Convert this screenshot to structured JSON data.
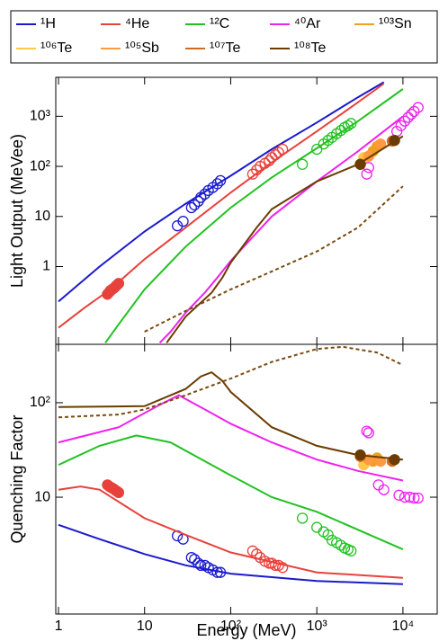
{
  "chart_data": [
    {
      "type": "line",
      "ylabel": "Light Output (MeVee)",
      "log_x": true,
      "log_y": true,
      "xlim": [
        0.93,
        25000
      ],
      "ylim": [
        0.028,
        6000
      ],
      "xticks": [
        1,
        10,
        100,
        1000,
        10000
      ],
      "yticks": [
        1,
        10,
        {
          "value": 100,
          "label": "10²"
        },
        {
          "value": 1000,
          "label": "10³"
        }
      ],
      "series": [
        {
          "name": "¹H",
          "color": "#1a1acd",
          "x": [
            1,
            3,
            10,
            30,
            100,
            300,
            1000,
            3000,
            6000
          ],
          "values": [
            0.2,
            1.0,
            5,
            18,
            65,
            220,
            750,
            2400,
            4800
          ],
          "points": [
            {
              "filled": false,
              "x": [
                24,
                28,
                35,
                38,
                42,
                45,
                50,
                55,
                62,
                70,
                76
              ],
              "values": [
                6.5,
                8,
                15,
                17,
                20,
                24,
                28,
                33,
                38,
                45,
                52
              ]
            }
          ]
        },
        {
          "name": "⁴He",
          "color": "#e8413b",
          "x": [
            1,
            2,
            4,
            10,
            30,
            100,
            300,
            1000,
            3000,
            6000
          ],
          "values": [
            0.06,
            0.15,
            0.35,
            1.4,
            6,
            30,
            120,
            500,
            1900,
            4500
          ],
          "points": [
            {
              "filled": true,
              "x": [
                3.7,
                3.9,
                4.0,
                4.2,
                4.4,
                4.6,
                4.8,
                5.0
              ],
              "values": [
                0.28,
                0.31,
                0.33,
                0.35,
                0.37,
                0.4,
                0.43,
                0.46
              ]
            },
            {
              "filled": false,
              "x": [
                180,
                200,
                220,
                250,
                280,
                300,
                330,
                360,
                400
              ],
              "values": [
                70,
                85,
                100,
                115,
                130,
                150,
                170,
                190,
                220
              ]
            }
          ]
        },
        {
          "name": "¹²C",
          "color": "#21c221",
          "x": [
            3.5,
            5,
            10,
            30,
            100,
            300,
            1000,
            3000,
            10000
          ],
          "values": [
            0.03,
            0.07,
            0.35,
            2.5,
            15,
            60,
            230,
            800,
            3500
          ],
          "points": [
            {
              "filled": false,
              "x": [
                680,
                1000,
                1200,
                1350,
                1500,
                1700,
                1900,
                2100,
                2300,
                2500
              ],
              "values": [
                110,
                220,
                280,
                330,
                380,
                450,
                520,
                600,
                650,
                720
              ]
            }
          ]
        },
        {
          "name": "⁴⁰Ar",
          "color": "#ee22ee",
          "x": [
            15,
            20,
            30,
            50,
            70,
            100,
            300,
            1000,
            3000,
            10000
          ],
          "values": [
            0.03,
            0.05,
            0.12,
            0.3,
            0.6,
            1.3,
            10,
            50,
            200,
            1000
          ],
          "points": [
            {
              "filled": false,
              "x": [
                3800,
                4000,
                8500,
                9500,
                10500,
                11500,
                12500,
                13500,
                15000
              ],
              "values": [
                70,
                95,
                500,
                650,
                800,
                950,
                1100,
                1250,
                1500
              ]
            }
          ]
        },
        {
          "name": "¹⁰³Sn",
          "color": "#f0a020",
          "points": [
            {
              "filled": true,
              "x": [
                4500,
                5000
              ],
              "values": [
                200,
                250
              ]
            }
          ]
        },
        {
          "name": "¹⁰⁶Te",
          "color": "#ffc848",
          "points": [
            {
              "filled": true,
              "x": [
                3500
              ],
              "values": [
                150
              ]
            }
          ]
        },
        {
          "name": "¹⁰⁵Sb",
          "color": "#ff9a40",
          "points": [
            {
              "filled": true,
              "x": [
                4000,
                5500
              ],
              "values": [
                160,
                280
              ]
            }
          ]
        },
        {
          "name": "¹⁰⁷Te",
          "color": "#d06a20",
          "points": [
            {
              "filled": true,
              "x": [
                3200,
                7500
              ],
              "values": [
                110,
                320
              ]
            }
          ]
        },
        {
          "name": "¹⁰⁸Te",
          "color": "#6b3c00",
          "x": [
            18,
            30,
            60,
            80,
            100,
            200,
            300,
            1000,
            3000,
            10000
          ],
          "values": [
            0.03,
            0.1,
            0.3,
            0.6,
            1.2,
            6,
            14,
            50,
            110,
            400
          ],
          "points": [
            {
              "filled": true,
              "x": [
                3200,
                8000
              ],
              "values": [
                110,
                330
              ]
            }
          ]
        },
        {
          "color": "#7a4a10",
          "dashed": true,
          "x": [
            10,
            30,
            100,
            300,
            1000,
            3000,
            10000
          ],
          "values": [
            0.05,
            0.13,
            0.35,
            0.8,
            2,
            6,
            40
          ]
        }
      ]
    },
    {
      "type": "line",
      "ylabel": "Quenching Factor",
      "xlabel": "Energy (MeV)",
      "log_x": true,
      "log_y": true,
      "xlim": [
        0.93,
        25000
      ],
      "ylim": [
        0.58,
        415
      ],
      "xticks": [
        1,
        10,
        {
          "value": 100,
          "label": "10²"
        },
        {
          "value": 1000,
          "label": "10³"
        },
        {
          "value": 10000,
          "label": "10⁴"
        }
      ],
      "yticks": [
        10,
        {
          "value": 100,
          "label": "10²"
        }
      ],
      "series": [
        {
          "color": "#1a1acd",
          "x": [
            1,
            3,
            10,
            30,
            100,
            1000,
            10000
          ],
          "values": [
            5.1,
            3.6,
            2.5,
            1.9,
            1.55,
            1.3,
            1.2
          ],
          "points": [
            {
              "filled": false,
              "x": [
                24,
                28,
                35,
                38,
                42,
                45,
                50,
                55,
                62,
                70,
                76
              ],
              "values": [
                3.9,
                3.6,
                2.3,
                2.2,
                2.0,
                1.9,
                1.9,
                1.8,
                1.7,
                1.6,
                1.6
              ]
            }
          ]
        },
        {
          "color": "#e8413b",
          "x": [
            1,
            1.8,
            3,
            10,
            30,
            100,
            1000,
            10000
          ],
          "values": [
            12,
            13,
            12,
            6,
            4,
            2.6,
            1.6,
            1.4
          ],
          "points": [
            {
              "filled": true,
              "x": [
                3.7,
                3.9,
                4.0,
                4.2,
                4.4,
                4.6,
                4.8,
                5.0
              ],
              "values": [
                13.5,
                13,
                12.8,
                12.5,
                12.2,
                11.8,
                11.5,
                11.2
              ]
            },
            {
              "filled": false,
              "x": [
                180,
                200,
                220,
                250,
                280,
                300,
                330,
                360,
                400
              ],
              "values": [
                2.7,
                2.5,
                2.3,
                2.1,
                2.0,
                2.0,
                1.9,
                1.9,
                1.8
              ]
            }
          ]
        },
        {
          "color": "#21c221",
          "x": [
            1,
            3,
            8,
            20,
            100,
            300,
            1000,
            10000
          ],
          "values": [
            22,
            35,
            45,
            38,
            17,
            10,
            7,
            2.8
          ],
          "points": [
            {
              "filled": false,
              "x": [
                680,
                1000,
                1200,
                1350,
                1500,
                1700,
                1900,
                2100,
                2300,
                2500
              ],
              "values": [
                6.0,
                4.8,
                4.3,
                4.0,
                3.5,
                3.3,
                3.1,
                2.9,
                2.8,
                2.7
              ]
            }
          ]
        },
        {
          "color": "#ee22ee",
          "x": [
            1,
            5,
            15,
            25,
            50,
            100,
            300,
            1000,
            3000,
            10000
          ],
          "values": [
            38,
            55,
            95,
            120,
            85,
            60,
            38,
            25,
            19,
            15
          ],
          "points": [
            {
              "filled": false,
              "x": [
                3800,
                4000,
                5200,
                6000,
                9000,
                10500,
                12000,
                13500,
                15000
              ],
              "values": [
                50,
                48,
                13.5,
                12,
                10.5,
                10,
                10,
                9.8,
                9.8
              ]
            }
          ]
        },
        {
          "color": "#f0a020",
          "points": [
            {
              "filled": true,
              "x": [
                4500,
                5000
              ],
              "values": [
                24,
                26
              ]
            }
          ]
        },
        {
          "color": "#ffc848",
          "points": [
            {
              "filled": true,
              "x": [
                3500
              ],
              "values": [
                22
              ]
            }
          ]
        },
        {
          "color": "#ff9a40",
          "points": [
            {
              "filled": true,
              "x": [
                4000,
                5500
              ],
              "values": [
                25,
                24
              ]
            }
          ]
        },
        {
          "color": "#d06a20",
          "points": [
            {
              "filled": true,
              "x": [
                3200,
                7500
              ],
              "values": [
                27,
                24
              ]
            }
          ]
        },
        {
          "color": "#6b3c00",
          "x": [
            1,
            10,
            30,
            45,
            60,
            80,
            100,
            300,
            1000,
            3000,
            10000
          ],
          "values": [
            90,
            92,
            140,
            190,
            210,
            170,
            130,
            55,
            35,
            28,
            25
          ],
          "points": [
            {
              "filled": true,
              "x": [
                3200,
                8000
              ],
              "values": [
                28,
                25
              ]
            }
          ]
        },
        {
          "color": "#7a4a10",
          "dashed": true,
          "x": [
            1,
            5,
            10,
            30,
            100,
            300,
            1000,
            2000,
            5000,
            10000
          ],
          "values": [
            70,
            75,
            85,
            120,
            180,
            270,
            370,
            390,
            340,
            250
          ]
        }
      ]
    }
  ]
}
